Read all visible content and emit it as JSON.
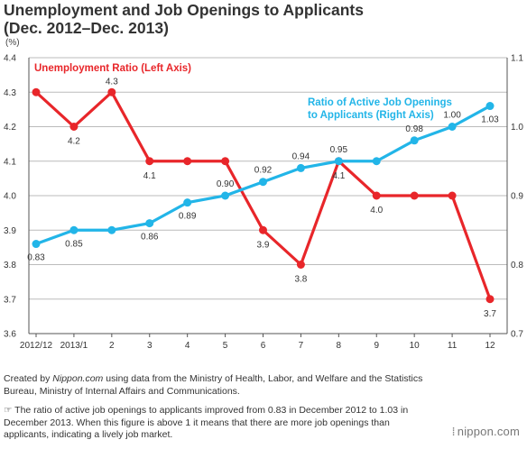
{
  "title_line1": "Unemployment and Job Openings to Applicants",
  "title_line2": "(Dec. 2012–Dec. 2013)",
  "unit_label": "(%)",
  "chart_data": {
    "type": "line",
    "categories": [
      "2012/12",
      "2013/1",
      "2",
      "3",
      "4",
      "5",
      "6",
      "7",
      "8",
      "9",
      "10",
      "11",
      "12"
    ],
    "left_axis": {
      "ylim": [
        3.6,
        4.4
      ],
      "ticks": [
        "4.4",
        "4.3",
        "4.2",
        "4.1",
        "4.0",
        "3.9",
        "3.8",
        "3.7",
        "3.6"
      ]
    },
    "right_axis": {
      "ylim": [
        0.7,
        1.1
      ],
      "ticks": [
        "1.1",
        "1.0",
        "0.9",
        "0.8",
        "0.7"
      ]
    },
    "grid": true,
    "series": [
      {
        "name": "Unemployment Ratio (Left Axis)",
        "axis": "left",
        "color": "#e8262a",
        "values": [
          4.3,
          4.2,
          4.3,
          4.1,
          4.1,
          4.1,
          3.9,
          3.8,
          4.1,
          4.0,
          4.0,
          4.0,
          3.7
        ],
        "labels": [
          "",
          "4.2",
          "4.3",
          "4.1",
          "",
          "",
          "3.9",
          "3.8",
          "4.1",
          "4.0",
          "",
          "",
          "3.7"
        ]
      },
      {
        "name_line1": "Ratio of Active Job Openings",
        "name_line2": "to Applicants (Right Axis)",
        "axis": "right",
        "color": "#22b5e8",
        "values": [
          0.83,
          0.85,
          0.85,
          0.86,
          0.89,
          0.9,
          0.92,
          0.94,
          0.95,
          0.95,
          0.98,
          1.0,
          1.03
        ],
        "labels": [
          "0.83",
          "0.85",
          "",
          "0.86",
          "0.89",
          "0.90",
          "0.92",
          "0.94",
          "0.95",
          "",
          "0.98",
          "1.00",
          "1.03"
        ]
      }
    ]
  },
  "credit": {
    "prefix": "Created by ",
    "site": "Nippon.com",
    "rest": " using data from the Ministry of Health, Labor, and Welfare and the Statistics Bureau, Ministry of Internal Affairs and Communications."
  },
  "note": "The ratio of active job openings to applicants improved from 0.83 in December 2012 to 1.03 in December 2013. When this figure is above 1 it means that there are more job openings than applicants, indicating a lively job market.",
  "brand": "nippon.com"
}
